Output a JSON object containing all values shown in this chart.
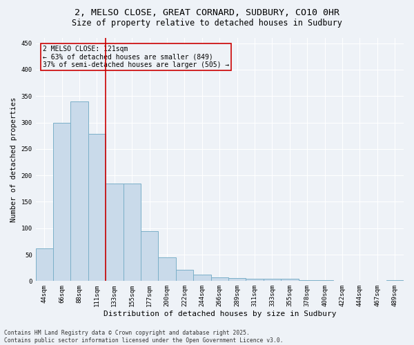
{
  "title_line1": "2, MELSO CLOSE, GREAT CORNARD, SUDBURY, CO10 0HR",
  "title_line2": "Size of property relative to detached houses in Sudbury",
  "xlabel": "Distribution of detached houses by size in Sudbury",
  "ylabel": "Number of detached properties",
  "bar_color": "#c9daea",
  "bar_edge_color": "#7aafc8",
  "categories": [
    "44sqm",
    "66sqm",
    "88sqm",
    "111sqm",
    "133sqm",
    "155sqm",
    "177sqm",
    "200sqm",
    "222sqm",
    "244sqm",
    "266sqm",
    "289sqm",
    "311sqm",
    "333sqm",
    "355sqm",
    "378sqm",
    "400sqm",
    "422sqm",
    "444sqm",
    "467sqm",
    "489sqm"
  ],
  "values": [
    62,
    300,
    340,
    278,
    185,
    185,
    95,
    45,
    21,
    12,
    7,
    6,
    4,
    4,
    4,
    2,
    2,
    1,
    1,
    0,
    2
  ],
  "vline_x": 3.5,
  "vline_color": "#cc0000",
  "annotation_text": "2 MELSO CLOSE: 121sqm\n← 63% of detached houses are smaller (849)\n37% of semi-detached houses are larger (505) →",
  "ylim": [
    0,
    460
  ],
  "yticks": [
    0,
    50,
    100,
    150,
    200,
    250,
    300,
    350,
    400,
    450
  ],
  "background_color": "#eef2f7",
  "grid_color": "#ffffff",
  "footer_text": "Contains HM Land Registry data © Crown copyright and database right 2025.\nContains public sector information licensed under the Open Government Licence v3.0.",
  "title_fontsize": 9.5,
  "subtitle_fontsize": 8.5,
  "tick_fontsize": 6.5,
  "ylabel_fontsize": 7.5,
  "xlabel_fontsize": 8,
  "footer_fontsize": 5.8,
  "ann_fontsize": 7
}
